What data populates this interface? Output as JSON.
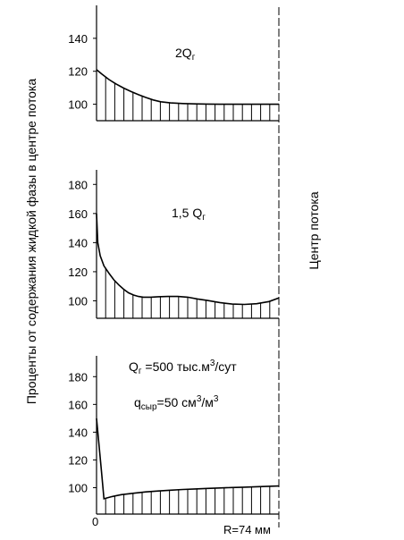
{
  "y_axis_label": "Проценты от содержания   жидкой  фазы в центре потока",
  "center_label": "Центр потока",
  "x_zero_label": "0",
  "x_end_label": "R=74 мм",
  "chart_data": [
    {
      "type": "area",
      "title": "2Qг",
      "title_main": "2Q",
      "title_sub": "г",
      "ylim": [
        90,
        160
      ],
      "yticks": [
        100,
        120,
        140
      ],
      "xlim": [
        0,
        74
      ],
      "x": [
        0,
        2,
        5,
        8,
        11,
        14,
        17,
        20,
        23,
        26,
        30,
        35,
        40,
        45,
        50,
        55,
        60,
        65,
        70,
        74
      ],
      "y": [
        121,
        118.5,
        115,
        112.2,
        109.8,
        107.7,
        105.8,
        104.1,
        102.6,
        101.5,
        100.8,
        100.4,
        100.2,
        100.1,
        100,
        100,
        100,
        100,
        100,
        100
      ]
    },
    {
      "type": "area",
      "title": "1,5 Qг",
      "title_main": "1,5 Q",
      "title_sub": "г",
      "ylim": [
        88,
        190
      ],
      "yticks": [
        100,
        120,
        140,
        160,
        180
      ],
      "xlim": [
        0,
        74
      ],
      "x": [
        0,
        0.5,
        1.5,
        3,
        5,
        7,
        9,
        11,
        13,
        15,
        17,
        19,
        22,
        25,
        29,
        33,
        37,
        41,
        45,
        50,
        55,
        60,
        65,
        70,
        74
      ],
      "y": [
        160,
        140,
        131,
        124,
        119,
        114.5,
        111,
        108,
        105.5,
        104,
        103,
        102.5,
        102.5,
        102.8,
        103,
        103,
        102.5,
        101.3,
        100.2,
        98.8,
        97.8,
        97.5,
        98,
        99.5,
        102
      ]
    },
    {
      "type": "area",
      "annotation_line1_main": "Q",
      "annotation_line1_sub": "г",
      "annotation_line1_rest": " =500 тыс.м",
      "annotation_line1_sup": "3",
      "annotation_line1_tail": "/сут",
      "annotation_line2_main": "q",
      "annotation_line2_sub": "сыр",
      "annotation_line2_rest": "=50 см",
      "annotation_line2_sup": "3",
      "annotation_line2_mid": "/м",
      "annotation_line2_sup2": "3",
      "ylim": [
        81,
        195
      ],
      "yticks": [
        100,
        120,
        140,
        160,
        180
      ],
      "xlim": [
        0,
        74
      ],
      "x": [
        0,
        2,
        3,
        6,
        10,
        15,
        20,
        25,
        30,
        35,
        40,
        45,
        50,
        55,
        60,
        65,
        70,
        74
      ],
      "y": [
        150,
        112,
        92,
        93.5,
        95,
        96,
        97,
        97.6,
        98.2,
        98.7,
        99.1,
        99.5,
        99.8,
        100.1,
        100.4,
        100.7,
        101,
        101.2
      ]
    }
  ]
}
